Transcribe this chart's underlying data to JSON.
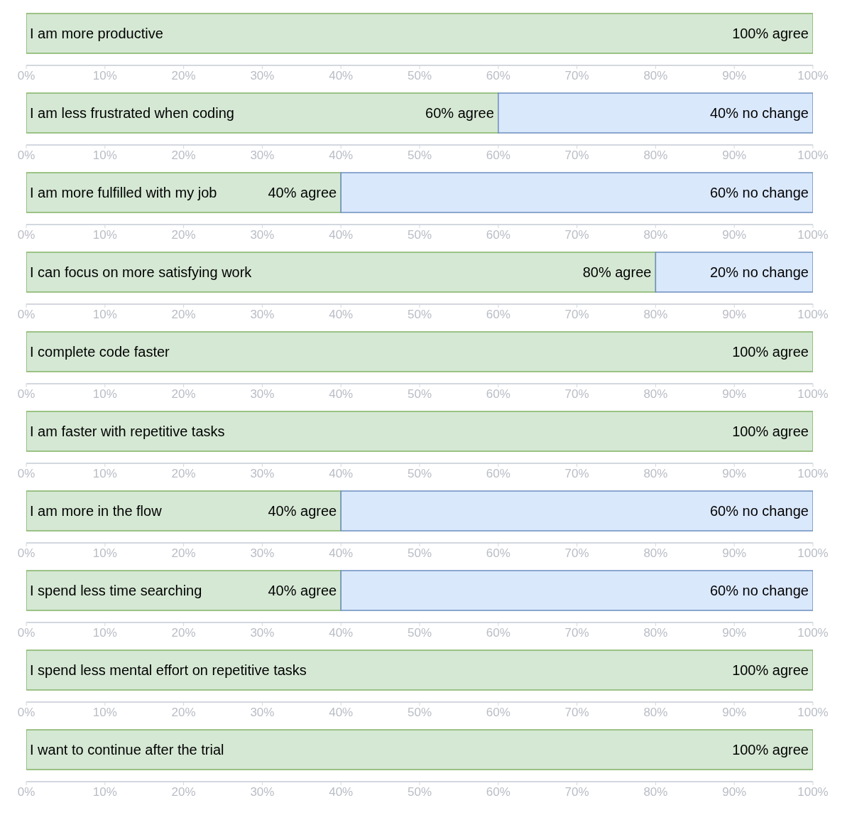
{
  "chart_data": [
    {
      "type": "bar",
      "orientation": "horizontal",
      "stacked": true,
      "categories": [
        "I am more productive"
      ],
      "series": [
        {
          "color": "#d5e8d4",
          "values": [
            100
          ],
          "value_labels": [
            "100% agree"
          ]
        }
      ],
      "xlim": [
        0,
        100
      ],
      "xticks": [
        {
          "value": 0,
          "label": "0%"
        },
        {
          "value": 10,
          "label": "10%"
        },
        {
          "value": 20,
          "label": "20%"
        },
        {
          "value": 30,
          "label": "30%"
        },
        {
          "value": 40,
          "label": "40%"
        },
        {
          "value": 50,
          "label": "50%"
        },
        {
          "value": 60,
          "label": "60%"
        },
        {
          "value": 70,
          "label": "70%"
        },
        {
          "value": 80,
          "label": "80%"
        },
        {
          "value": 90,
          "label": "90%"
        },
        {
          "value": 100,
          "label": "100%"
        }
      ]
    },
    {
      "type": "bar",
      "orientation": "horizontal",
      "stacked": true,
      "categories": [
        "I am less frustrated when coding"
      ],
      "series": [
        {
          "color": "#d5e8d4",
          "values": [
            60
          ],
          "value_labels": [
            "60% agree"
          ]
        },
        {
          "color": "#dae8fc",
          "values": [
            40
          ],
          "value_labels": [
            "40% no change"
          ]
        }
      ],
      "xlim": [
        0,
        100
      ],
      "xticks": [
        {
          "value": 0,
          "label": "0%"
        },
        {
          "value": 10,
          "label": "10%"
        },
        {
          "value": 20,
          "label": "20%"
        },
        {
          "value": 30,
          "label": "30%"
        },
        {
          "value": 40,
          "label": "40%"
        },
        {
          "value": 50,
          "label": "50%"
        },
        {
          "value": 60,
          "label": "60%"
        },
        {
          "value": 70,
          "label": "70%"
        },
        {
          "value": 80,
          "label": "80%"
        },
        {
          "value": 90,
          "label": "90%"
        },
        {
          "value": 100,
          "label": "100%"
        }
      ]
    },
    {
      "type": "bar",
      "orientation": "horizontal",
      "stacked": true,
      "categories": [
        "I am more fulfilled with my job"
      ],
      "series": [
        {
          "color": "#d5e8d4",
          "values": [
            40
          ],
          "value_labels": [
            "40% agree"
          ]
        },
        {
          "color": "#dae8fc",
          "values": [
            60
          ],
          "value_labels": [
            "60% no change"
          ]
        }
      ],
      "xlim": [
        0,
        100
      ],
      "xticks": [
        {
          "value": 0,
          "label": "0%"
        },
        {
          "value": 10,
          "label": "10%"
        },
        {
          "value": 20,
          "label": "20%"
        },
        {
          "value": 30,
          "label": "30%"
        },
        {
          "value": 40,
          "label": "40%"
        },
        {
          "value": 50,
          "label": "50%"
        },
        {
          "value": 60,
          "label": "60%"
        },
        {
          "value": 70,
          "label": "70%"
        },
        {
          "value": 80,
          "label": "80%"
        },
        {
          "value": 90,
          "label": "90%"
        },
        {
          "value": 100,
          "label": "100%"
        }
      ]
    },
    {
      "type": "bar",
      "orientation": "horizontal",
      "stacked": true,
      "categories": [
        "I can focus on more satisfying work"
      ],
      "series": [
        {
          "color": "#d5e8d4",
          "values": [
            80
          ],
          "value_labels": [
            "80% agree"
          ]
        },
        {
          "color": "#dae8fc",
          "values": [
            20
          ],
          "value_labels": [
            "20% no change"
          ]
        }
      ],
      "xlim": [
        0,
        100
      ],
      "xticks": [
        {
          "value": 0,
          "label": "0%"
        },
        {
          "value": 10,
          "label": "10%"
        },
        {
          "value": 20,
          "label": "20%"
        },
        {
          "value": 30,
          "label": "30%"
        },
        {
          "value": 40,
          "label": "40%"
        },
        {
          "value": 50,
          "label": "50%"
        },
        {
          "value": 60,
          "label": "60%"
        },
        {
          "value": 70,
          "label": "70%"
        },
        {
          "value": 80,
          "label": "80%"
        },
        {
          "value": 90,
          "label": "90%"
        },
        {
          "value": 100,
          "label": "100%"
        }
      ]
    },
    {
      "type": "bar",
      "orientation": "horizontal",
      "stacked": true,
      "categories": [
        "I complete code faster"
      ],
      "series": [
        {
          "color": "#d5e8d4",
          "values": [
            100
          ],
          "value_labels": [
            "100% agree"
          ]
        }
      ],
      "xlim": [
        0,
        100
      ],
      "xticks": [
        {
          "value": 0,
          "label": "0%"
        },
        {
          "value": 10,
          "label": "10%"
        },
        {
          "value": 20,
          "label": "20%"
        },
        {
          "value": 30,
          "label": "30%"
        },
        {
          "value": 40,
          "label": "40%"
        },
        {
          "value": 50,
          "label": "50%"
        },
        {
          "value": 60,
          "label": "60%"
        },
        {
          "value": 70,
          "label": "70%"
        },
        {
          "value": 80,
          "label": "80%"
        },
        {
          "value": 90,
          "label": "90%"
        },
        {
          "value": 100,
          "label": "100%"
        }
      ]
    },
    {
      "type": "bar",
      "orientation": "horizontal",
      "stacked": true,
      "categories": [
        "I am faster with repetitive tasks"
      ],
      "series": [
        {
          "color": "#d5e8d4",
          "values": [
            100
          ],
          "value_labels": [
            "100% agree"
          ]
        }
      ],
      "xlim": [
        0,
        100
      ],
      "xticks": [
        {
          "value": 0,
          "label": "0%"
        },
        {
          "value": 10,
          "label": "10%"
        },
        {
          "value": 20,
          "label": "20%"
        },
        {
          "value": 30,
          "label": "30%"
        },
        {
          "value": 40,
          "label": "40%"
        },
        {
          "value": 50,
          "label": "50%"
        },
        {
          "value": 60,
          "label": "60%"
        },
        {
          "value": 70,
          "label": "70%"
        },
        {
          "value": 80,
          "label": "80%"
        },
        {
          "value": 90,
          "label": "90%"
        },
        {
          "value": 100,
          "label": "100%"
        }
      ]
    },
    {
      "type": "bar",
      "orientation": "horizontal",
      "stacked": true,
      "categories": [
        "I am more in the flow"
      ],
      "series": [
        {
          "color": "#d5e8d4",
          "values": [
            40
          ],
          "value_labels": [
            "40% agree"
          ]
        },
        {
          "color": "#dae8fc",
          "values": [
            60
          ],
          "value_labels": [
            "60% no change"
          ]
        }
      ],
      "xlim": [
        0,
        100
      ],
      "xticks": [
        {
          "value": 0,
          "label": "0%"
        },
        {
          "value": 10,
          "label": "10%"
        },
        {
          "value": 20,
          "label": "20%"
        },
        {
          "value": 30,
          "label": "30%"
        },
        {
          "value": 40,
          "label": "40%"
        },
        {
          "value": 50,
          "label": "50%"
        },
        {
          "value": 60,
          "label": "60%"
        },
        {
          "value": 70,
          "label": "70%"
        },
        {
          "value": 80,
          "label": "80%"
        },
        {
          "value": 90,
          "label": "90%"
        },
        {
          "value": 100,
          "label": "100%"
        }
      ]
    },
    {
      "type": "bar",
      "orientation": "horizontal",
      "stacked": true,
      "categories": [
        "I spend less time searching"
      ],
      "series": [
        {
          "color": "#d5e8d4",
          "values": [
            40
          ],
          "value_labels": [
            "40% agree"
          ]
        },
        {
          "color": "#dae8fc",
          "values": [
            60
          ],
          "value_labels": [
            "60% no change"
          ]
        }
      ],
      "xlim": [
        0,
        100
      ],
      "xticks": [
        {
          "value": 0,
          "label": "0%"
        },
        {
          "value": 10,
          "label": "10%"
        },
        {
          "value": 20,
          "label": "20%"
        },
        {
          "value": 30,
          "label": "30%"
        },
        {
          "value": 40,
          "label": "40%"
        },
        {
          "value": 50,
          "label": "50%"
        },
        {
          "value": 60,
          "label": "60%"
        },
        {
          "value": 70,
          "label": "70%"
        },
        {
          "value": 80,
          "label": "80%"
        },
        {
          "value": 90,
          "label": "90%"
        },
        {
          "value": 100,
          "label": "100%"
        }
      ]
    },
    {
      "type": "bar",
      "orientation": "horizontal",
      "stacked": true,
      "categories": [
        "I spend less mental effort on repetitive tasks"
      ],
      "series": [
        {
          "color": "#d5e8d4",
          "values": [
            100
          ],
          "value_labels": [
            "100% agree"
          ]
        }
      ],
      "xlim": [
        0,
        100
      ],
      "xticks": [
        {
          "value": 0,
          "label": "0%"
        },
        {
          "value": 10,
          "label": "10%"
        },
        {
          "value": 20,
          "label": "20%"
        },
        {
          "value": 30,
          "label": "30%"
        },
        {
          "value": 40,
          "label": "40%"
        },
        {
          "value": 50,
          "label": "50%"
        },
        {
          "value": 60,
          "label": "60%"
        },
        {
          "value": 70,
          "label": "70%"
        },
        {
          "value": 80,
          "label": "80%"
        },
        {
          "value": 90,
          "label": "90%"
        },
        {
          "value": 100,
          "label": "100%"
        }
      ]
    },
    {
      "type": "bar",
      "orientation": "horizontal",
      "stacked": true,
      "categories": [
        "I want to continue after the trial"
      ],
      "series": [
        {
          "color": "#d5e8d4",
          "values": [
            100
          ],
          "value_labels": [
            "100% agree"
          ]
        }
      ],
      "xlim": [
        0,
        100
      ],
      "xticks": [
        {
          "value": 0,
          "label": "0%"
        },
        {
          "value": 10,
          "label": "10%"
        },
        {
          "value": 20,
          "label": "20%"
        },
        {
          "value": 30,
          "label": "30%"
        },
        {
          "value": 40,
          "label": "40%"
        },
        {
          "value": 50,
          "label": "50%"
        },
        {
          "value": 60,
          "label": "60%"
        },
        {
          "value": 70,
          "label": "70%"
        },
        {
          "value": 80,
          "label": "80%"
        },
        {
          "value": 90,
          "label": "90%"
        },
        {
          "value": 100,
          "label": "100%"
        }
      ]
    }
  ]
}
